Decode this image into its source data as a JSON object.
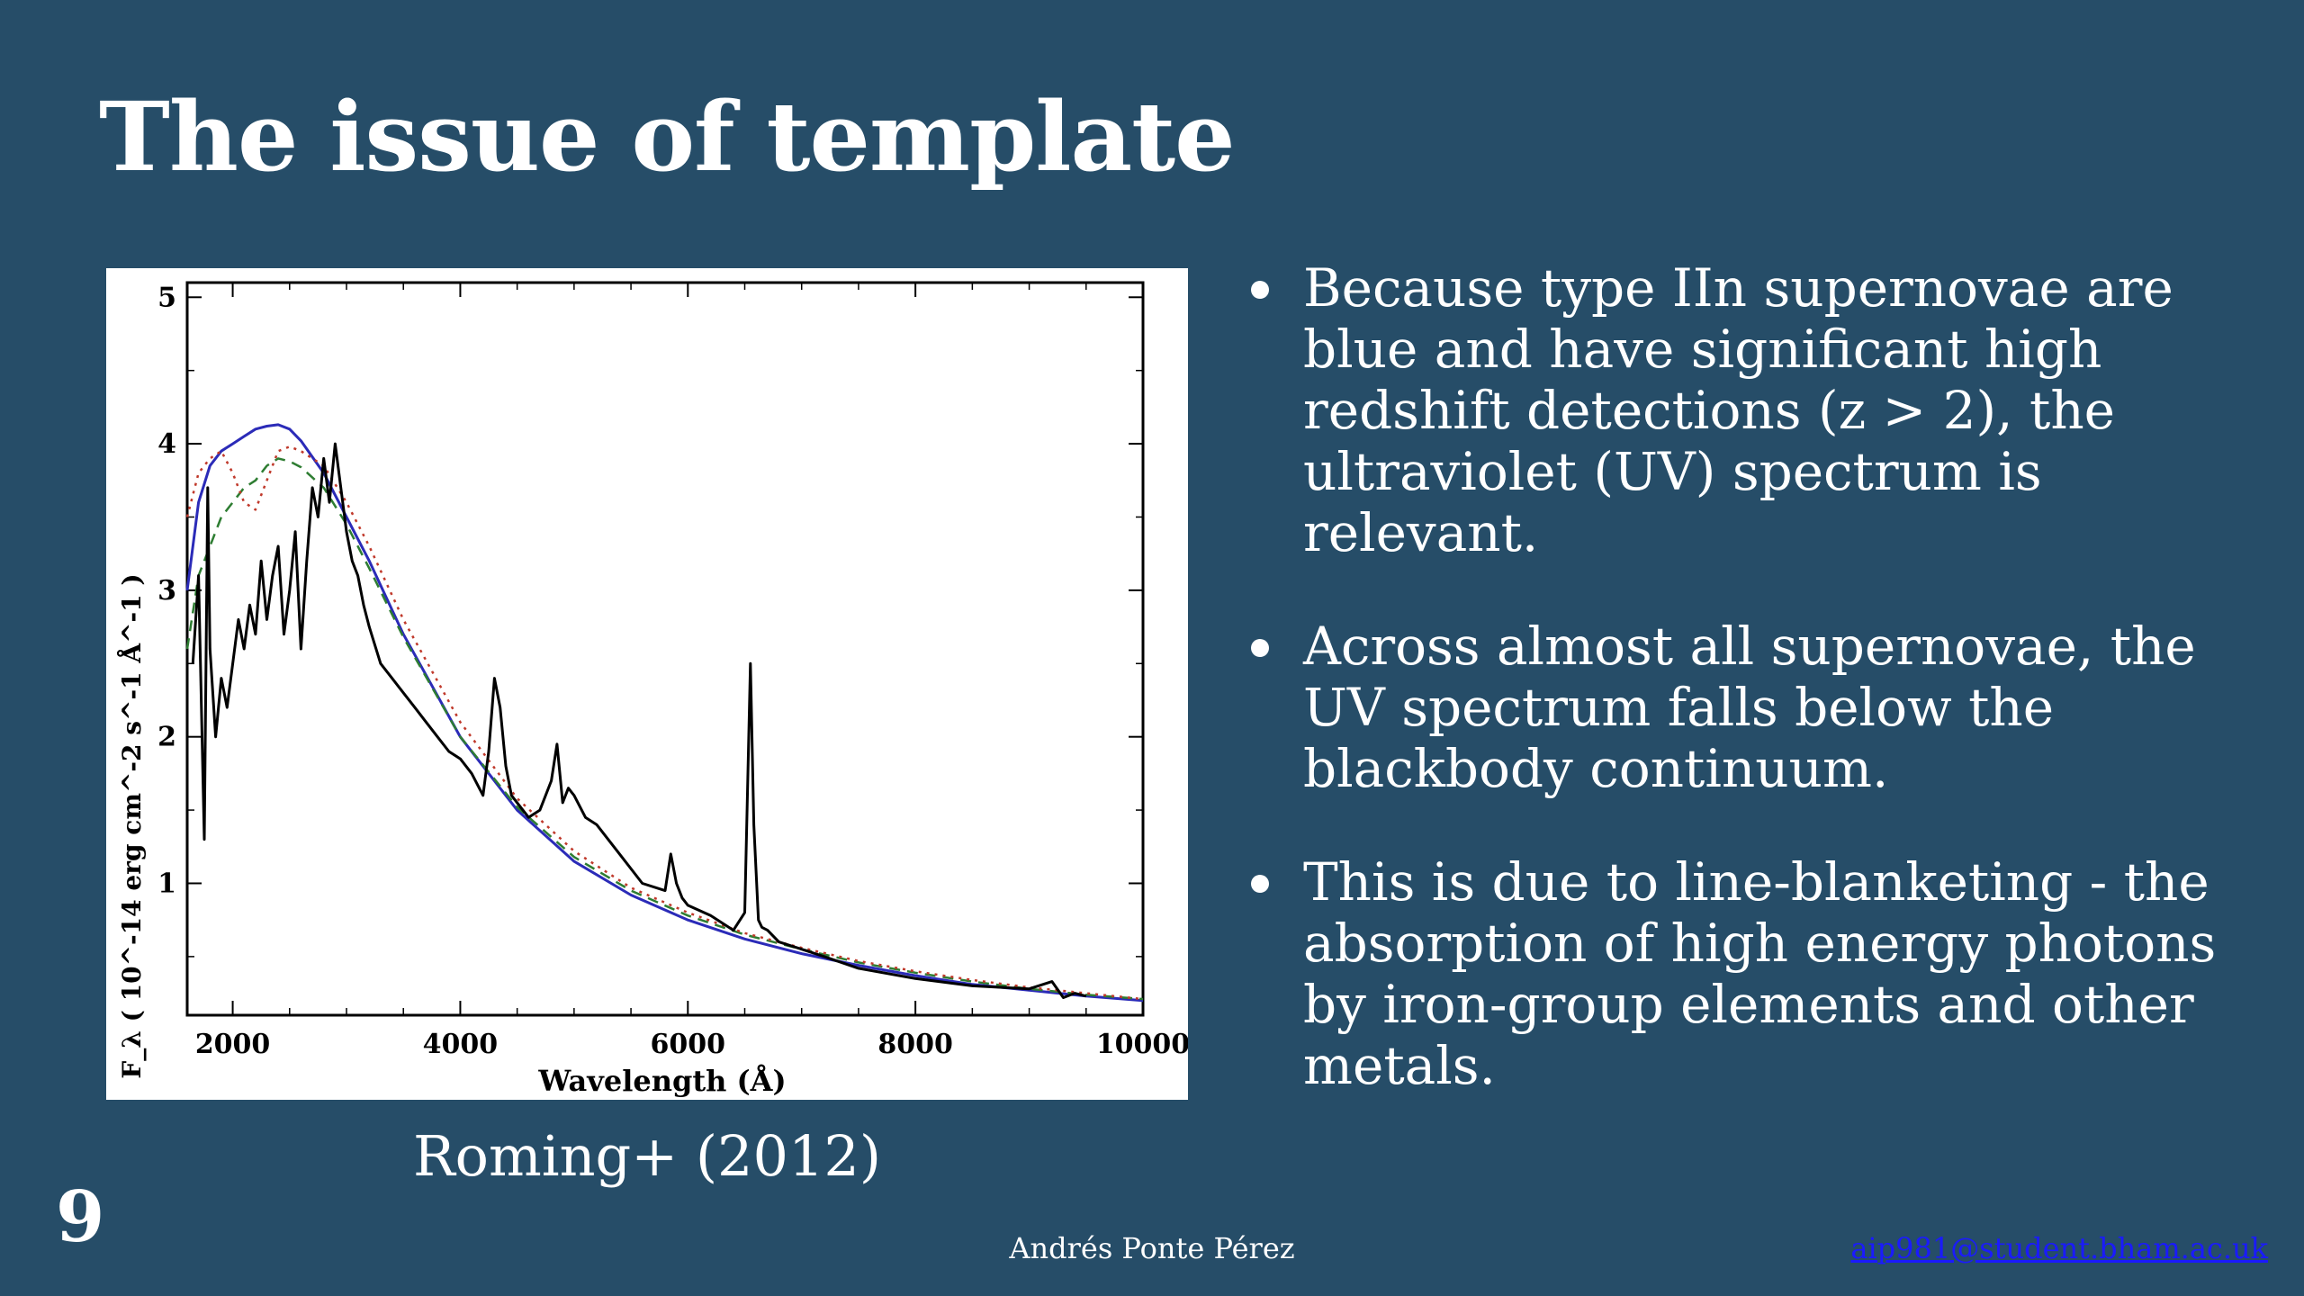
{
  "slide": {
    "title": "The issue of template",
    "caption": "Roming+ (2012)",
    "number": "9",
    "author": "Andrés Ponte Pérez",
    "email": "aip981@student.bham.ac.uk",
    "bullets": [
      "Because type IIn supernovae are blue and have significant high redshift detections (z > 2), the ultraviolet (UV) spectrum is relevant.",
      "Across almost all supernovae, the UV spectrum falls below the blackbody continuum.",
      "This is due to line-blanketing - the absorption of high energy photons by iron-group elements and other metals."
    ]
  },
  "chart_data": {
    "type": "line",
    "xlabel": "Wavelength (Å)",
    "ylabel": "F_λ ( 10^-14 erg cm^-2 s^-1 Å^-1 )",
    "xlim": [
      1600,
      10000
    ],
    "ylim": [
      0.1,
      5.1
    ],
    "xticks": [
      "2000",
      "4000",
      "6000",
      "8000",
      "10000"
    ],
    "yticks": [
      "1",
      "2",
      "3",
      "4",
      "5"
    ],
    "colors": {
      "observed": "#000000",
      "blackbody": "#2b2bb8",
      "model_dashed": "#2e7d32",
      "model_dotted": "#c0392b"
    },
    "series": [
      {
        "x": [
          1650,
          1700,
          1750,
          1780,
          1800,
          1850,
          1900,
          1950,
          2000,
          2050,
          2100,
          2150,
          2200,
          2250,
          2300,
          2350,
          2400,
          2450,
          2500,
          2550,
          2600,
          2650,
          2700,
          2750,
          2800,
          2850,
          2900,
          2950,
          3000,
          3050,
          3100,
          3150,
          3200,
          3300,
          3400,
          3500,
          3600,
          3700,
          3800,
          3900,
          4000,
          4100,
          4200,
          4250,
          4300,
          4350,
          4400,
          4450,
          4500,
          4600,
          4700,
          4800,
          4850,
          4900,
          4950,
          5000,
          5100,
          5200,
          5400,
          5600,
          5800,
          5850,
          5900,
          5950,
          6000,
          6200,
          6400,
          6500,
          6550,
          6580,
          6620,
          6650,
          6700,
          6800,
          7000,
          7200,
          7500,
          8000,
          8500,
          9000,
          9200,
          9300,
          9400,
          9500
        ],
        "y": [
          2.5,
          3.1,
          1.3,
          3.7,
          2.6,
          2.0,
          2.4,
          2.2,
          2.5,
          2.8,
          2.6,
          2.9,
          2.7,
          3.2,
          2.8,
          3.1,
          3.3,
          2.7,
          3.0,
          3.4,
          2.6,
          3.2,
          3.7,
          3.5,
          3.9,
          3.6,
          4.0,
          3.7,
          3.4,
          3.2,
          3.1,
          2.9,
          2.75,
          2.5,
          2.4,
          2.3,
          2.2,
          2.1,
          2.0,
          1.9,
          1.85,
          1.75,
          1.6,
          1.9,
          2.4,
          2.2,
          1.8,
          1.6,
          1.55,
          1.45,
          1.5,
          1.7,
          1.95,
          1.55,
          1.65,
          1.6,
          1.45,
          1.4,
          1.2,
          1.0,
          0.95,
          1.2,
          1.0,
          0.9,
          0.85,
          0.78,
          0.68,
          0.8,
          2.5,
          1.4,
          0.75,
          0.7,
          0.68,
          0.6,
          0.55,
          0.5,
          0.42,
          0.35,
          0.3,
          0.28,
          0.33,
          0.22,
          0.25,
          0.23
        ]
      },
      {
        "x": [
          1600,
          1700,
          1800,
          1900,
          2000,
          2100,
          2200,
          2300,
          2400,
          2500,
          2600,
          2800,
          3000,
          3200,
          3500,
          4000,
          4500,
          5000,
          5500,
          6000,
          6500,
          7000,
          7500,
          8000,
          8500,
          9000,
          9500,
          10000
        ],
        "y": [
          3.0,
          3.6,
          3.85,
          3.95,
          4.0,
          4.05,
          4.1,
          4.12,
          4.13,
          4.1,
          4.02,
          3.8,
          3.5,
          3.2,
          2.7,
          2.0,
          1.5,
          1.15,
          0.92,
          0.75,
          0.62,
          0.52,
          0.44,
          0.37,
          0.31,
          0.27,
          0.23,
          0.2
        ]
      },
      {
        "x": [
          1600,
          1700,
          1800,
          1900,
          2000,
          2100,
          2200,
          2300,
          2400,
          2500,
          2600,
          2800,
          3000,
          3200,
          3500,
          4000,
          4500,
          5000,
          5500,
          6000,
          6500,
          7000,
          7500,
          8000,
          8500,
          9000,
          9500,
          10000
        ],
        "y": [
          2.6,
          3.1,
          3.3,
          3.5,
          3.6,
          3.7,
          3.75,
          3.85,
          3.9,
          3.88,
          3.84,
          3.7,
          3.45,
          3.15,
          2.68,
          2.0,
          1.52,
          1.18,
          0.95,
          0.78,
          0.65,
          0.55,
          0.46,
          0.39,
          0.33,
          0.28,
          0.24,
          0.21
        ]
      },
      {
        "x": [
          1600,
          1700,
          1800,
          1900,
          2000,
          2100,
          2200,
          2300,
          2400,
          2500,
          2600,
          2800,
          3000,
          3200,
          3500,
          4000,
          4500,
          5000,
          5500,
          6000,
          6500,
          7000,
          7500,
          8000,
          8500,
          9000,
          9500,
          10000
        ],
        "y": [
          3.5,
          3.8,
          3.9,
          3.95,
          3.8,
          3.6,
          3.55,
          3.75,
          3.95,
          3.98,
          3.95,
          3.85,
          3.6,
          3.3,
          2.8,
          2.1,
          1.58,
          1.22,
          0.97,
          0.8,
          0.66,
          0.56,
          0.47,
          0.4,
          0.34,
          0.29,
          0.25,
          0.21
        ]
      }
    ]
  }
}
